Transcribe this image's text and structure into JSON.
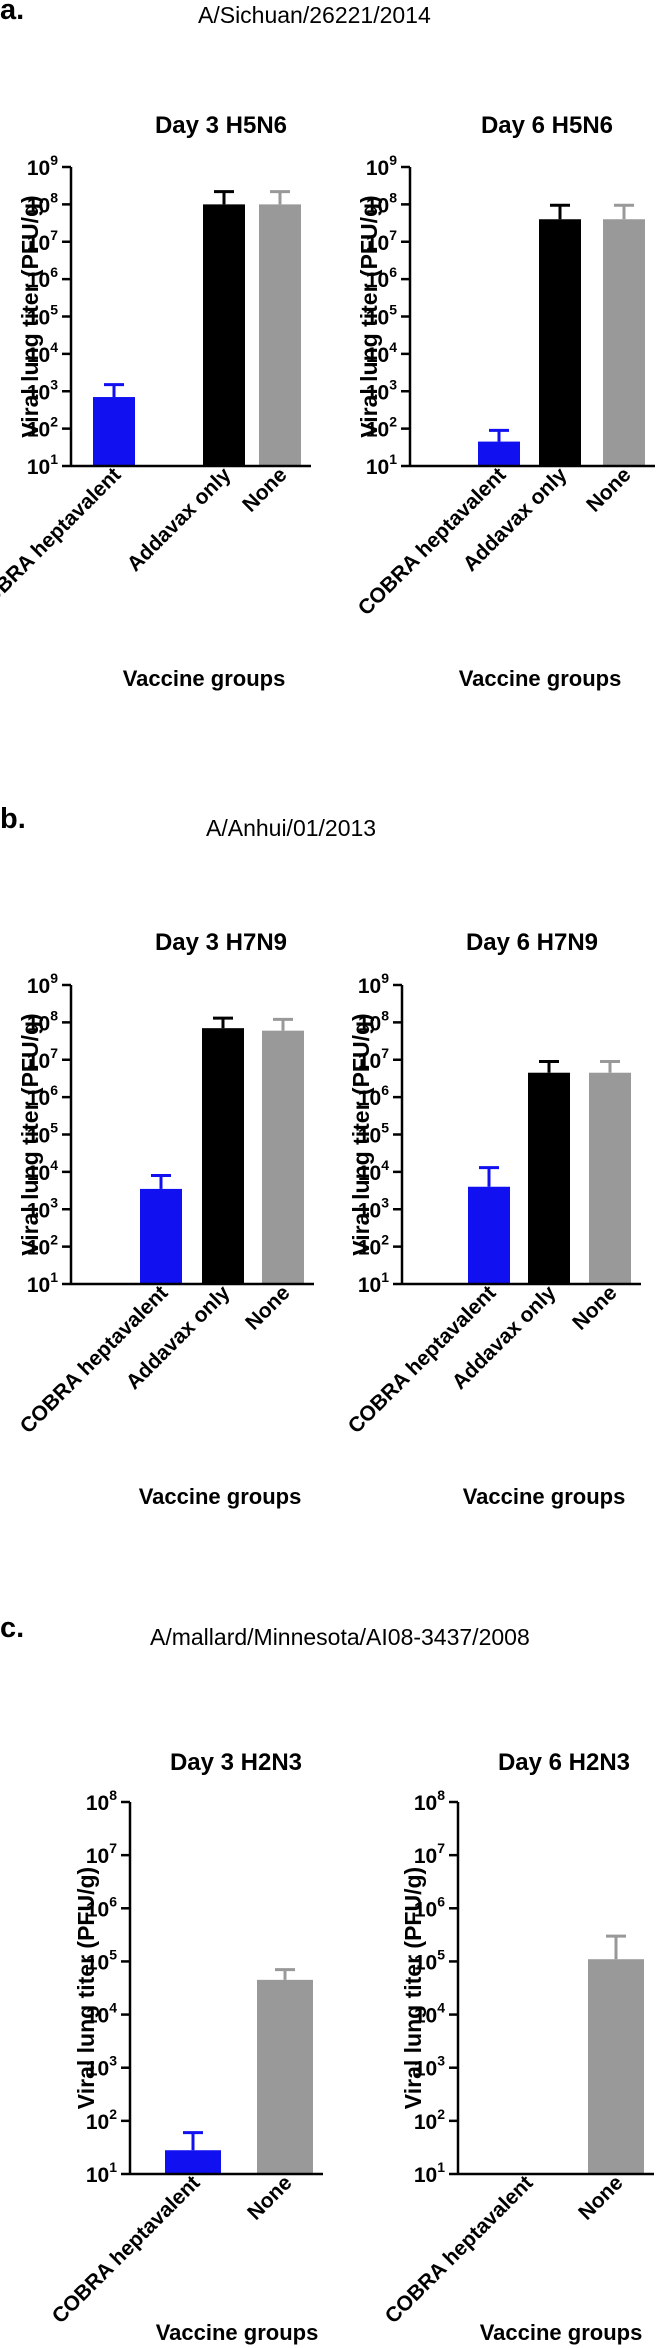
{
  "panels": [
    {
      "letter": "a.",
      "strain": "A/Sichuan/26221/2014"
    },
    {
      "letter": "b.",
      "strain": "A/Anhui/01/2013"
    },
    {
      "letter": "c.",
      "strain": "A/mallard/Minnesota/AI08-3437/2008"
    }
  ],
  "colors": {
    "COBRA heptavalent": "#1010f0",
    "Addavax only": "#000000",
    "None": "#999999"
  },
  "chart_data": [
    {
      "type": "bar",
      "title": "Day 3 H5N6",
      "xlabel": "Vaccine groups",
      "ylabel": "Viral lung titer (PFU/g)",
      "yscale": "log",
      "ylim": [
        10,
        1000000000
      ],
      "categories": [
        "COBRA heptavalent",
        "Addavax only",
        "None"
      ],
      "values": [
        700,
        100000000,
        100000000
      ],
      "error_upper": [
        1500,
        220000000,
        220000000
      ]
    },
    {
      "type": "bar",
      "title": "Day 6 H5N6",
      "xlabel": "Vaccine groups",
      "ylabel": "Viral lung titer (PFU/g)",
      "yscale": "log",
      "ylim": [
        10,
        1000000000
      ],
      "categories": [
        "COBRA heptavalent",
        "Addavax only",
        "None"
      ],
      "values": [
        45,
        40000000,
        40000000
      ],
      "error_upper": [
        90,
        95000000,
        95000000
      ]
    },
    {
      "type": "bar",
      "title": "Day 3 H7N9",
      "xlabel": "Vaccine groups",
      "ylabel": "Viral lung titer (PFU/g)",
      "yscale": "log",
      "ylim": [
        10,
        1000000000
      ],
      "categories": [
        "COBRA heptavalent",
        "Addavax only",
        "None"
      ],
      "values": [
        3500,
        70000000,
        60000000
      ],
      "error_upper": [
        8000,
        130000000,
        120000000
      ]
    },
    {
      "type": "bar",
      "title": "Day 6 H7N9",
      "xlabel": "Vaccine groups",
      "ylabel": "Viral lung titer (PFU/g)",
      "yscale": "log",
      "ylim": [
        10,
        1000000000
      ],
      "categories": [
        "COBRA heptavalent",
        "Addavax only",
        "None"
      ],
      "values": [
        4000,
        4500000,
        4500000
      ],
      "error_upper": [
        13000,
        9000000,
        9000000
      ]
    },
    {
      "type": "bar",
      "title": "Day 3 H2N3",
      "xlabel": "Vaccine groups",
      "ylabel": "Viral lung titer (PFU/g)",
      "yscale": "log",
      "ylim": [
        10,
        100000000
      ],
      "categories": [
        "COBRA heptavalent",
        "None"
      ],
      "values": [
        28,
        45000
      ],
      "error_upper": [
        60,
        70000
      ]
    },
    {
      "type": "bar",
      "title": "Day 6 H2N3",
      "xlabel": "Vaccine groups",
      "ylabel": "Viral lung titer (PFU/g)",
      "yscale": "log",
      "ylim": [
        10,
        100000000
      ],
      "categories": [
        "COBRA heptavalent",
        "None"
      ],
      "values": [
        10,
        110000
      ],
      "error_upper": [
        10,
        300000
      ]
    }
  ]
}
